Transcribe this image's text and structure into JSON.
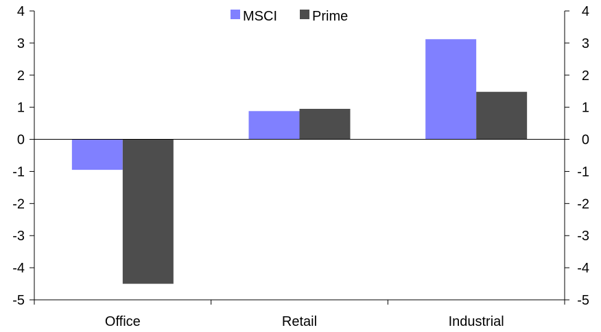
{
  "chart_data": {
    "type": "bar",
    "title": "",
    "xlabel": "",
    "ylabel": "",
    "categories": [
      "Office",
      "Retail",
      "Industrial"
    ],
    "series": [
      {
        "name": "MSCI",
        "values": [
          -0.95,
          0.88,
          3.12
        ],
        "color": "#8080ff"
      },
      {
        "name": "Prime",
        "values": [
          -4.5,
          0.95,
          1.48
        ],
        "color": "#4d4d4d"
      }
    ],
    "ylim": [
      -5,
      4
    ],
    "yticks": [
      "-5",
      "-4",
      "-3",
      "-2",
      "-1",
      "0",
      "1",
      "2",
      "3",
      "4"
    ],
    "y_axis_sides": [
      "left",
      "right"
    ],
    "grid": false,
    "legend_position": "top-center"
  }
}
